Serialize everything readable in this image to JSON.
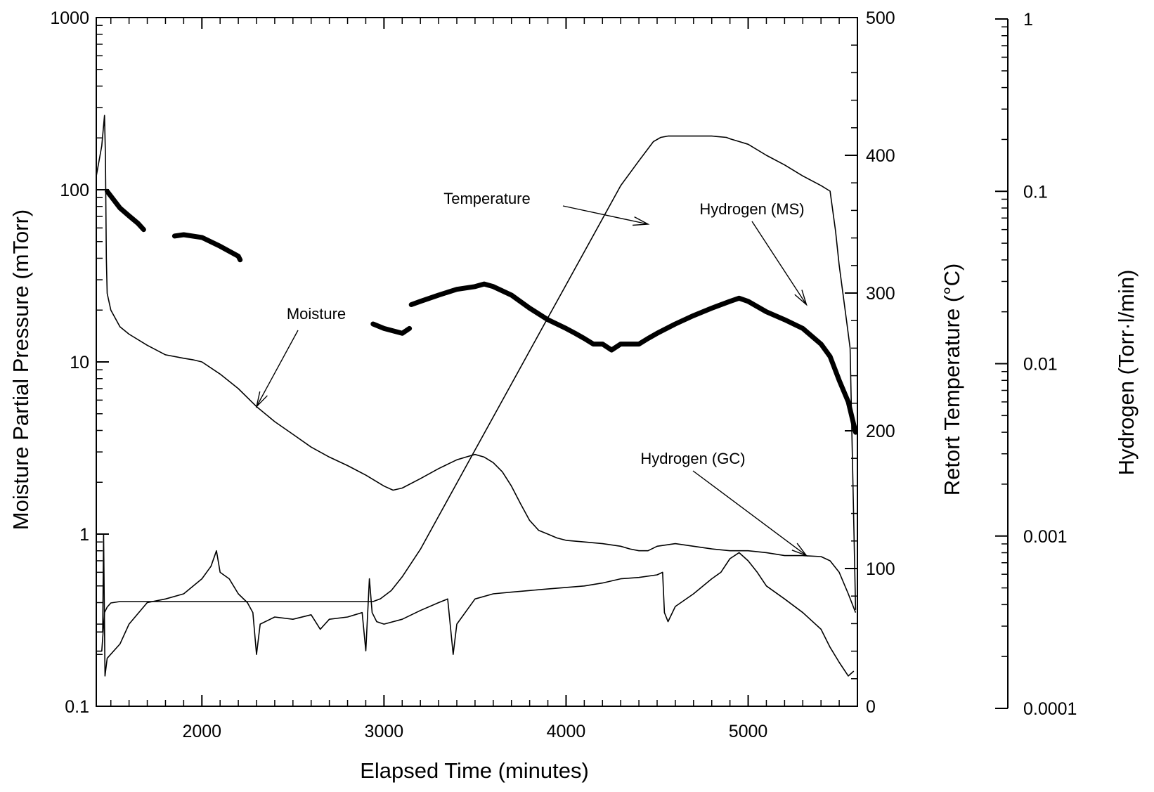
{
  "chart_data": {
    "type": "line",
    "title": "",
    "x_axis": {
      "label": "Elapsed Time (minutes)",
      "range": [
        1420,
        5600
      ],
      "ticks": [
        2000,
        3000,
        4000,
        5000
      ]
    },
    "y_left": {
      "label": "Moisture Partial Pressure (mTorr)",
      "scale": "log",
      "range": [
        0.1,
        1000
      ],
      "ticks": [
        {
          "v": 0.1,
          "t": "0.1"
        },
        {
          "v": 1,
          "t": "1"
        },
        {
          "v": 10,
          "t": "10"
        },
        {
          "v": 100,
          "t": "100"
        },
        {
          "v": 1000,
          "t": "1000"
        }
      ]
    },
    "y_right": {
      "label": "Retort Temperature (°C)",
      "scale": "linear",
      "range": [
        0,
        500
      ],
      "ticks": [
        {
          "v": 0,
          "t": "0"
        },
        {
          "v": 100,
          "t": "100"
        },
        {
          "v": 200,
          "t": "200"
        },
        {
          "v": 300,
          "t": "300"
        },
        {
          "v": 400,
          "t": "400"
        },
        {
          "v": 500,
          "t": "500"
        }
      ]
    },
    "y_far_right": {
      "label": "Hydrogen (Torr·l/min)",
      "scale": "log",
      "range": [
        0.0001,
        1
      ],
      "ticks": [
        {
          "v": 0.0001,
          "t": "0.0001"
        },
        {
          "v": 0.001,
          "t": "0.001"
        },
        {
          "v": 0.01,
          "t": "0.01"
        },
        {
          "v": 0.1,
          "t": "0.1"
        },
        {
          "v": 1,
          "t": "1"
        }
      ]
    },
    "series": [
      {
        "name": "Temperature",
        "axis": "y_right",
        "points": [
          [
            1420,
            40
          ],
          [
            1450,
            40
          ],
          [
            1465,
            68
          ],
          [
            1480,
            72
          ],
          [
            1500,
            75
          ],
          [
            1550,
            76
          ],
          [
            1700,
            76
          ],
          [
            2500,
            76
          ],
          [
            2940,
            76
          ],
          [
            2980,
            78
          ],
          [
            3040,
            84
          ],
          [
            3100,
            94
          ],
          [
            3200,
            114
          ],
          [
            3300,
            138
          ],
          [
            3400,
            162
          ],
          [
            3500,
            186
          ],
          [
            3600,
            210
          ],
          [
            3700,
            234
          ],
          [
            3800,
            258
          ],
          [
            3900,
            282
          ],
          [
            4000,
            306
          ],
          [
            4100,
            330
          ],
          [
            4200,
            354
          ],
          [
            4300,
            378
          ],
          [
            4400,
            396
          ],
          [
            4480,
            410
          ],
          [
            4520,
            413
          ],
          [
            4560,
            414
          ],
          [
            4600,
            414
          ],
          [
            4700,
            414
          ],
          [
            4800,
            414
          ],
          [
            4880,
            413
          ],
          [
            4900,
            412
          ],
          [
            4950,
            410
          ],
          [
            5000,
            408
          ],
          [
            5100,
            400
          ],
          [
            5200,
            393
          ],
          [
            5300,
            385
          ],
          [
            5400,
            378
          ],
          [
            5450,
            374
          ],
          [
            5480,
            345
          ],
          [
            5500,
            320
          ],
          [
            5520,
            300
          ],
          [
            5540,
            280
          ],
          [
            5560,
            260
          ],
          [
            5590,
            70
          ]
        ]
      },
      {
        "name": "Moisture",
        "axis": "y_left",
        "points": [
          [
            1420,
            120
          ],
          [
            1450,
            180
          ],
          [
            1465,
            270
          ],
          [
            1470,
            160
          ],
          [
            1475,
            40
          ],
          [
            1480,
            25
          ],
          [
            1500,
            20
          ],
          [
            1550,
            16
          ],
          [
            1600,
            14.5
          ],
          [
            1700,
            12.5
          ],
          [
            1800,
            11
          ],
          [
            1900,
            10.5
          ],
          [
            1950,
            10.3
          ],
          [
            2000,
            10
          ],
          [
            2100,
            8.5
          ],
          [
            2200,
            7
          ],
          [
            2300,
            5.5
          ],
          [
            2400,
            4.5
          ],
          [
            2500,
            3.8
          ],
          [
            2600,
            3.2
          ],
          [
            2700,
            2.8
          ],
          [
            2800,
            2.5
          ],
          [
            2900,
            2.2
          ],
          [
            3000,
            1.9
          ],
          [
            3050,
            1.8
          ],
          [
            3100,
            1.85
          ],
          [
            3200,
            2.1
          ],
          [
            3300,
            2.4
          ],
          [
            3400,
            2.7
          ],
          [
            3450,
            2.8
          ],
          [
            3500,
            2.9
          ],
          [
            3550,
            2.8
          ],
          [
            3600,
            2.6
          ],
          [
            3650,
            2.3
          ],
          [
            3700,
            1.9
          ],
          [
            3750,
            1.5
          ],
          [
            3800,
            1.2
          ],
          [
            3850,
            1.05
          ],
          [
            3900,
            1.0
          ],
          [
            3950,
            0.95
          ],
          [
            4000,
            0.92
          ],
          [
            4100,
            0.9
          ],
          [
            4200,
            0.88
          ],
          [
            4300,
            0.85
          ],
          [
            4350,
            0.82
          ],
          [
            4400,
            0.8
          ],
          [
            4450,
            0.8
          ],
          [
            4500,
            0.85
          ],
          [
            4600,
            0.88
          ],
          [
            4700,
            0.85
          ],
          [
            4800,
            0.82
          ],
          [
            4900,
            0.8
          ],
          [
            5000,
            0.8
          ],
          [
            5100,
            0.78
          ],
          [
            5200,
            0.75
          ],
          [
            5300,
            0.75
          ],
          [
            5400,
            0.74
          ],
          [
            5450,
            0.7
          ],
          [
            5500,
            0.6
          ],
          [
            5550,
            0.45
          ],
          [
            5590,
            0.35
          ]
        ]
      },
      {
        "name": "Hydrogen (GC)",
        "axis": "y_left",
        "points": [
          [
            1420,
            0.27
          ],
          [
            1455,
            0.27
          ],
          [
            1460,
            1.0
          ],
          [
            1468,
            0.15
          ],
          [
            1480,
            0.19
          ],
          [
            1550,
            0.23
          ],
          [
            1600,
            0.3
          ],
          [
            1700,
            0.4
          ],
          [
            1800,
            0.42
          ],
          [
            1900,
            0.45
          ],
          [
            2000,
            0.55
          ],
          [
            2050,
            0.65
          ],
          [
            2080,
            0.8
          ],
          [
            2100,
            0.6
          ],
          [
            2150,
            0.55
          ],
          [
            2200,
            0.45
          ],
          [
            2250,
            0.4
          ],
          [
            2280,
            0.35
          ],
          [
            2300,
            0.2
          ],
          [
            2320,
            0.3
          ],
          [
            2400,
            0.33
          ],
          [
            2500,
            0.32
          ],
          [
            2600,
            0.34
          ],
          [
            2650,
            0.28
          ],
          [
            2700,
            0.32
          ],
          [
            2800,
            0.33
          ],
          [
            2880,
            0.35
          ],
          [
            2900,
            0.21
          ],
          [
            2920,
            0.55
          ],
          [
            2935,
            0.35
          ],
          [
            2960,
            0.31
          ],
          [
            3000,
            0.3
          ],
          [
            3100,
            0.32
          ],
          [
            3200,
            0.36
          ],
          [
            3300,
            0.4
          ],
          [
            3350,
            0.42
          ],
          [
            3380,
            0.2
          ],
          [
            3400,
            0.3
          ],
          [
            3500,
            0.42
          ],
          [
            3600,
            0.45
          ],
          [
            3700,
            0.46
          ],
          [
            3800,
            0.47
          ],
          [
            3900,
            0.48
          ],
          [
            4000,
            0.49
          ],
          [
            4100,
            0.5
          ],
          [
            4200,
            0.52
          ],
          [
            4300,
            0.55
          ],
          [
            4400,
            0.56
          ],
          [
            4500,
            0.58
          ],
          [
            4530,
            0.6
          ],
          [
            4540,
            0.35
          ],
          [
            4560,
            0.31
          ],
          [
            4600,
            0.38
          ],
          [
            4700,
            0.45
          ],
          [
            4800,
            0.55
          ],
          [
            4850,
            0.6
          ],
          [
            4900,
            0.72
          ],
          [
            4950,
            0.78
          ],
          [
            5000,
            0.7
          ],
          [
            5050,
            0.6
          ],
          [
            5100,
            0.5
          ],
          [
            5200,
            0.42
          ],
          [
            5300,
            0.35
          ],
          [
            5400,
            0.28
          ],
          [
            5450,
            0.22
          ],
          [
            5500,
            0.18
          ],
          [
            5550,
            0.15
          ],
          [
            5580,
            0.16
          ]
        ]
      },
      {
        "name": "Hydrogen (MS)",
        "axis": "y_far_right",
        "segments": [
          [
            [
              1480,
              0.1
            ],
            [
              1550,
              0.08
            ],
            [
              1600,
              0.072
            ],
            [
              1650,
              0.065
            ],
            [
              1680,
              0.06
            ]
          ],
          [
            [
              1850,
              0.055
            ],
            [
              1900,
              0.056
            ],
            [
              2000,
              0.054
            ],
            [
              2100,
              0.048
            ],
            [
              2200,
              0.042
            ],
            [
              2210,
              0.04
            ]
          ],
          [
            [
              2940,
              0.017
            ],
            [
              3000,
              0.016
            ],
            [
              3100,
              0.015
            ],
            [
              3140,
              0.016
            ]
          ],
          [
            [
              3150,
              0.022
            ],
            [
              3200,
              0.023
            ],
            [
              3300,
              0.025
            ],
            [
              3400,
              0.027
            ],
            [
              3500,
              0.028
            ],
            [
              3550,
              0.029
            ],
            [
              3600,
              0.028
            ],
            [
              3700,
              0.025
            ],
            [
              3800,
              0.021
            ],
            [
              3900,
              0.018
            ],
            [
              4000,
              0.016
            ],
            [
              4050,
              0.015
            ],
            [
              4100,
              0.014
            ],
            [
              4150,
              0.013
            ],
            [
              4200,
              0.013
            ],
            [
              4250,
              0.012
            ],
            [
              4300,
              0.013
            ],
            [
              4400,
              0.013
            ],
            [
              4450,
              0.014
            ],
            [
              4500,
              0.015
            ],
            [
              4600,
              0.017
            ],
            [
              4700,
              0.019
            ],
            [
              4800,
              0.021
            ],
            [
              4900,
              0.023
            ],
            [
              4950,
              0.024
            ],
            [
              5000,
              0.023
            ],
            [
              5100,
              0.02
            ],
            [
              5200,
              0.018
            ],
            [
              5300,
              0.016
            ],
            [
              5400,
              0.013
            ],
            [
              5450,
              0.011
            ],
            [
              5500,
              0.008
            ],
            [
              5550,
              0.006
            ],
            [
              5590,
              0.004
            ]
          ]
        ]
      }
    ],
    "annotations": [
      {
        "text": "Temperature",
        "arrow_to": {
          "x": 4450,
          "y": 350,
          "axis": "y_right"
        }
      },
      {
        "text": "Hydrogen (MS)",
        "arrow_to": {
          "x": 5320,
          "y": 0.022,
          "axis": "y_far_right"
        }
      },
      {
        "text": "Moisture",
        "arrow_to": {
          "x": 2300,
          "y": 5.5,
          "axis": "y_left"
        }
      },
      {
        "text": "Hydrogen (GC)",
        "arrow_to": {
          "x": 5320,
          "y": 0.75,
          "axis": "y_left"
        }
      }
    ]
  }
}
